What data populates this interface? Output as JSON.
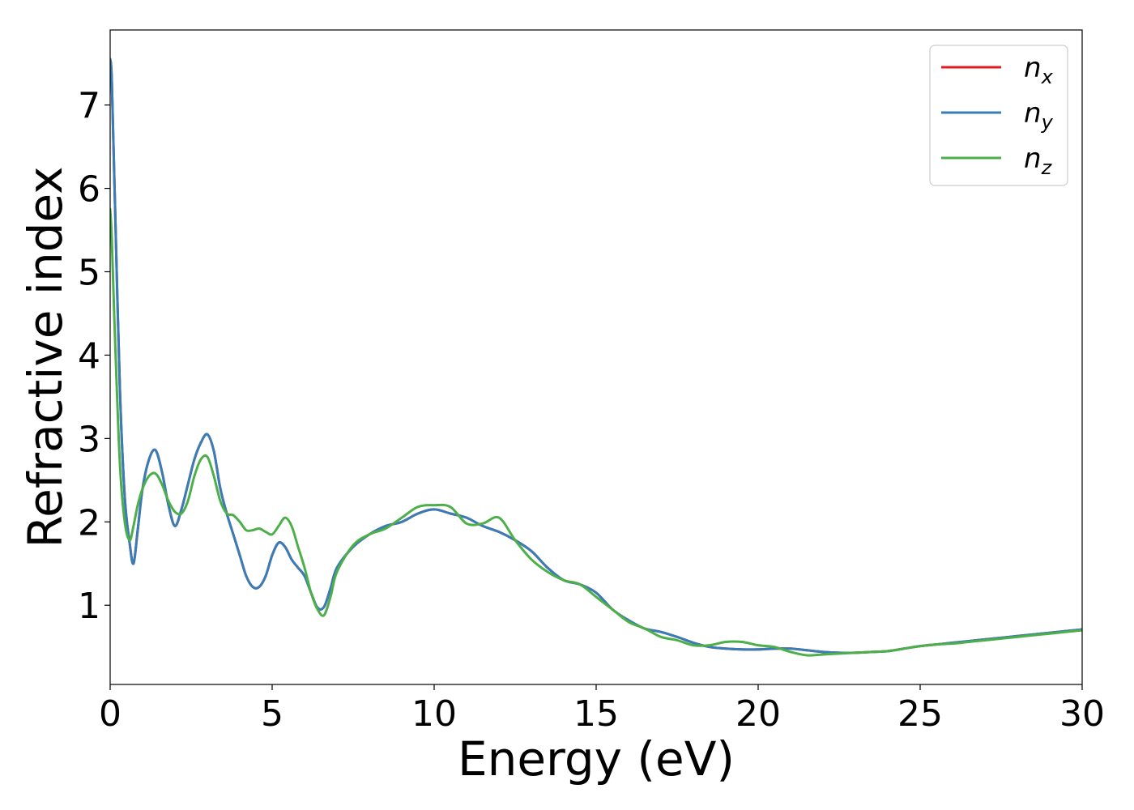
{
  "chart_data": {
    "type": "line",
    "title": "",
    "xlabel": "Energy (eV)",
    "ylabel": "Refractive index",
    "xlim": [
      0,
      30
    ],
    "ylim": [
      0.05,
      7.9
    ],
    "xticks": [
      0,
      5,
      10,
      15,
      20,
      25,
      30
    ],
    "yticks": [
      1,
      2,
      3,
      4,
      5,
      6,
      7
    ],
    "grid": false,
    "legend_position": "top-right",
    "series": [
      {
        "name": "n_x",
        "label_base": "n",
        "label_sub": "x",
        "color": "#e41a1c",
        "x": [
          0,
          0.05,
          0.15,
          0.3,
          0.45,
          0.6,
          0.72,
          0.85,
          1.0,
          1.2,
          1.4,
          1.6,
          1.8,
          2.0,
          2.2,
          2.4,
          2.6,
          2.8,
          3.0,
          3.2,
          3.4,
          3.6,
          3.8,
          4.0,
          4.2,
          4.4,
          4.6,
          4.8,
          5.0,
          5.2,
          5.4,
          5.6,
          5.8,
          6.0,
          6.2,
          6.4,
          6.6,
          6.8,
          7.0,
          7.5,
          8.0,
          8.5,
          9.0,
          9.5,
          10.0,
          10.5,
          11.0,
          11.5,
          12.0,
          12.5,
          13.0,
          13.5,
          14.0,
          14.5,
          15.0,
          15.5,
          16.0,
          16.5,
          17.0,
          17.5,
          18.0,
          18.5,
          19.0,
          19.5,
          20.0,
          20.5,
          21.0,
          21.5,
          22.0,
          22.5,
          23.0,
          23.5,
          24.0,
          24.5,
          25.0,
          25.5,
          26.0,
          26.5,
          27.0,
          27.5,
          28.0,
          28.5,
          29.0,
          29.5,
          30.0
        ],
        "y": [
          7.55,
          7.3,
          5.8,
          3.6,
          2.3,
          1.75,
          1.5,
          1.9,
          2.4,
          2.75,
          2.86,
          2.6,
          2.2,
          1.95,
          2.15,
          2.45,
          2.75,
          2.95,
          3.05,
          2.85,
          2.4,
          2.1,
          1.85,
          1.6,
          1.35,
          1.22,
          1.22,
          1.35,
          1.6,
          1.75,
          1.7,
          1.55,
          1.45,
          1.35,
          1.15,
          0.97,
          0.98,
          1.2,
          1.45,
          1.7,
          1.85,
          1.95,
          2.0,
          2.1,
          2.15,
          2.1,
          2.05,
          1.95,
          1.88,
          1.78,
          1.65,
          1.45,
          1.3,
          1.25,
          1.15,
          0.95,
          0.82,
          0.72,
          0.68,
          0.62,
          0.55,
          0.5,
          0.48,
          0.47,
          0.47,
          0.48,
          0.48,
          0.46,
          0.44,
          0.43,
          0.43,
          0.44,
          0.45,
          0.48,
          0.51,
          0.53,
          0.55,
          0.57,
          0.59,
          0.61,
          0.63,
          0.65,
          0.67,
          0.69,
          0.71
        ]
      },
      {
        "name": "n_y",
        "label_base": "n",
        "label_sub": "y",
        "color": "#377eb8",
        "x": [
          0,
          0.05,
          0.15,
          0.3,
          0.45,
          0.6,
          0.72,
          0.85,
          1.0,
          1.2,
          1.4,
          1.6,
          1.8,
          2.0,
          2.2,
          2.4,
          2.6,
          2.8,
          3.0,
          3.2,
          3.4,
          3.6,
          3.8,
          4.0,
          4.2,
          4.4,
          4.6,
          4.8,
          5.0,
          5.2,
          5.4,
          5.6,
          5.8,
          6.0,
          6.2,
          6.4,
          6.6,
          6.8,
          7.0,
          7.5,
          8.0,
          8.5,
          9.0,
          9.5,
          10.0,
          10.5,
          11.0,
          11.5,
          12.0,
          12.5,
          13.0,
          13.5,
          14.0,
          14.5,
          15.0,
          15.5,
          16.0,
          16.5,
          17.0,
          17.5,
          18.0,
          18.5,
          19.0,
          19.5,
          20.0,
          20.5,
          21.0,
          21.5,
          22.0,
          22.5,
          23.0,
          23.5,
          24.0,
          24.5,
          25.0,
          25.5,
          26.0,
          26.5,
          27.0,
          27.5,
          28.0,
          28.5,
          29.0,
          29.5,
          30.0
        ],
        "y": [
          7.55,
          7.3,
          5.8,
          3.6,
          2.3,
          1.75,
          1.5,
          1.9,
          2.4,
          2.75,
          2.86,
          2.6,
          2.2,
          1.95,
          2.15,
          2.45,
          2.75,
          2.95,
          3.05,
          2.85,
          2.4,
          2.1,
          1.85,
          1.6,
          1.35,
          1.22,
          1.22,
          1.35,
          1.6,
          1.75,
          1.7,
          1.55,
          1.45,
          1.35,
          1.15,
          0.97,
          0.98,
          1.2,
          1.45,
          1.7,
          1.85,
          1.95,
          2.0,
          2.1,
          2.15,
          2.1,
          2.05,
          1.95,
          1.88,
          1.78,
          1.65,
          1.45,
          1.3,
          1.25,
          1.15,
          0.95,
          0.82,
          0.72,
          0.68,
          0.62,
          0.55,
          0.5,
          0.48,
          0.47,
          0.47,
          0.48,
          0.48,
          0.46,
          0.44,
          0.43,
          0.43,
          0.44,
          0.45,
          0.48,
          0.51,
          0.53,
          0.55,
          0.57,
          0.59,
          0.61,
          0.63,
          0.65,
          0.67,
          0.69,
          0.71
        ]
      },
      {
        "name": "n_z",
        "label_base": "n",
        "label_sub": "z",
        "color": "#4daf4a",
        "x": [
          0,
          0.05,
          0.15,
          0.3,
          0.45,
          0.6,
          0.72,
          0.85,
          1.0,
          1.2,
          1.4,
          1.6,
          1.8,
          2.0,
          2.2,
          2.4,
          2.6,
          2.8,
          3.0,
          3.2,
          3.4,
          3.6,
          3.8,
          4.0,
          4.2,
          4.4,
          4.6,
          4.8,
          5.0,
          5.2,
          5.4,
          5.6,
          5.8,
          6.0,
          6.2,
          6.4,
          6.6,
          6.8,
          7.0,
          7.5,
          8.0,
          8.5,
          9.0,
          9.5,
          10.0,
          10.5,
          11.0,
          11.5,
          12.0,
          12.5,
          13.0,
          13.5,
          14.0,
          14.5,
          15.0,
          15.5,
          16.0,
          16.5,
          17.0,
          17.5,
          18.0,
          18.5,
          19.0,
          19.5,
          20.0,
          20.5,
          21.0,
          21.5,
          22.0,
          22.5,
          23.0,
          23.5,
          24.0,
          24.5,
          25.0,
          25.5,
          26.0,
          26.5,
          27.0,
          27.5,
          28.0,
          28.5,
          29.0,
          29.5,
          30.0
        ],
        "y": [
          5.75,
          5.4,
          4.2,
          2.7,
          2.0,
          1.78,
          1.95,
          2.2,
          2.4,
          2.55,
          2.58,
          2.45,
          2.25,
          2.12,
          2.1,
          2.25,
          2.55,
          2.75,
          2.78,
          2.55,
          2.25,
          2.1,
          2.08,
          2.0,
          1.9,
          1.9,
          1.92,
          1.88,
          1.85,
          1.95,
          2.05,
          1.95,
          1.7,
          1.45,
          1.15,
          0.95,
          0.88,
          1.1,
          1.4,
          1.72,
          1.85,
          1.92,
          2.05,
          2.18,
          2.2,
          2.18,
          1.98,
          1.98,
          2.05,
          1.78,
          1.55,
          1.4,
          1.3,
          1.25,
          1.1,
          0.95,
          0.8,
          0.72,
          0.62,
          0.58,
          0.52,
          0.52,
          0.56,
          0.56,
          0.52,
          0.5,
          0.44,
          0.4,
          0.41,
          0.42,
          0.43,
          0.44,
          0.45,
          0.48,
          0.51,
          0.53,
          0.54,
          0.56,
          0.58,
          0.6,
          0.62,
          0.64,
          0.66,
          0.68,
          0.7
        ]
      }
    ]
  }
}
